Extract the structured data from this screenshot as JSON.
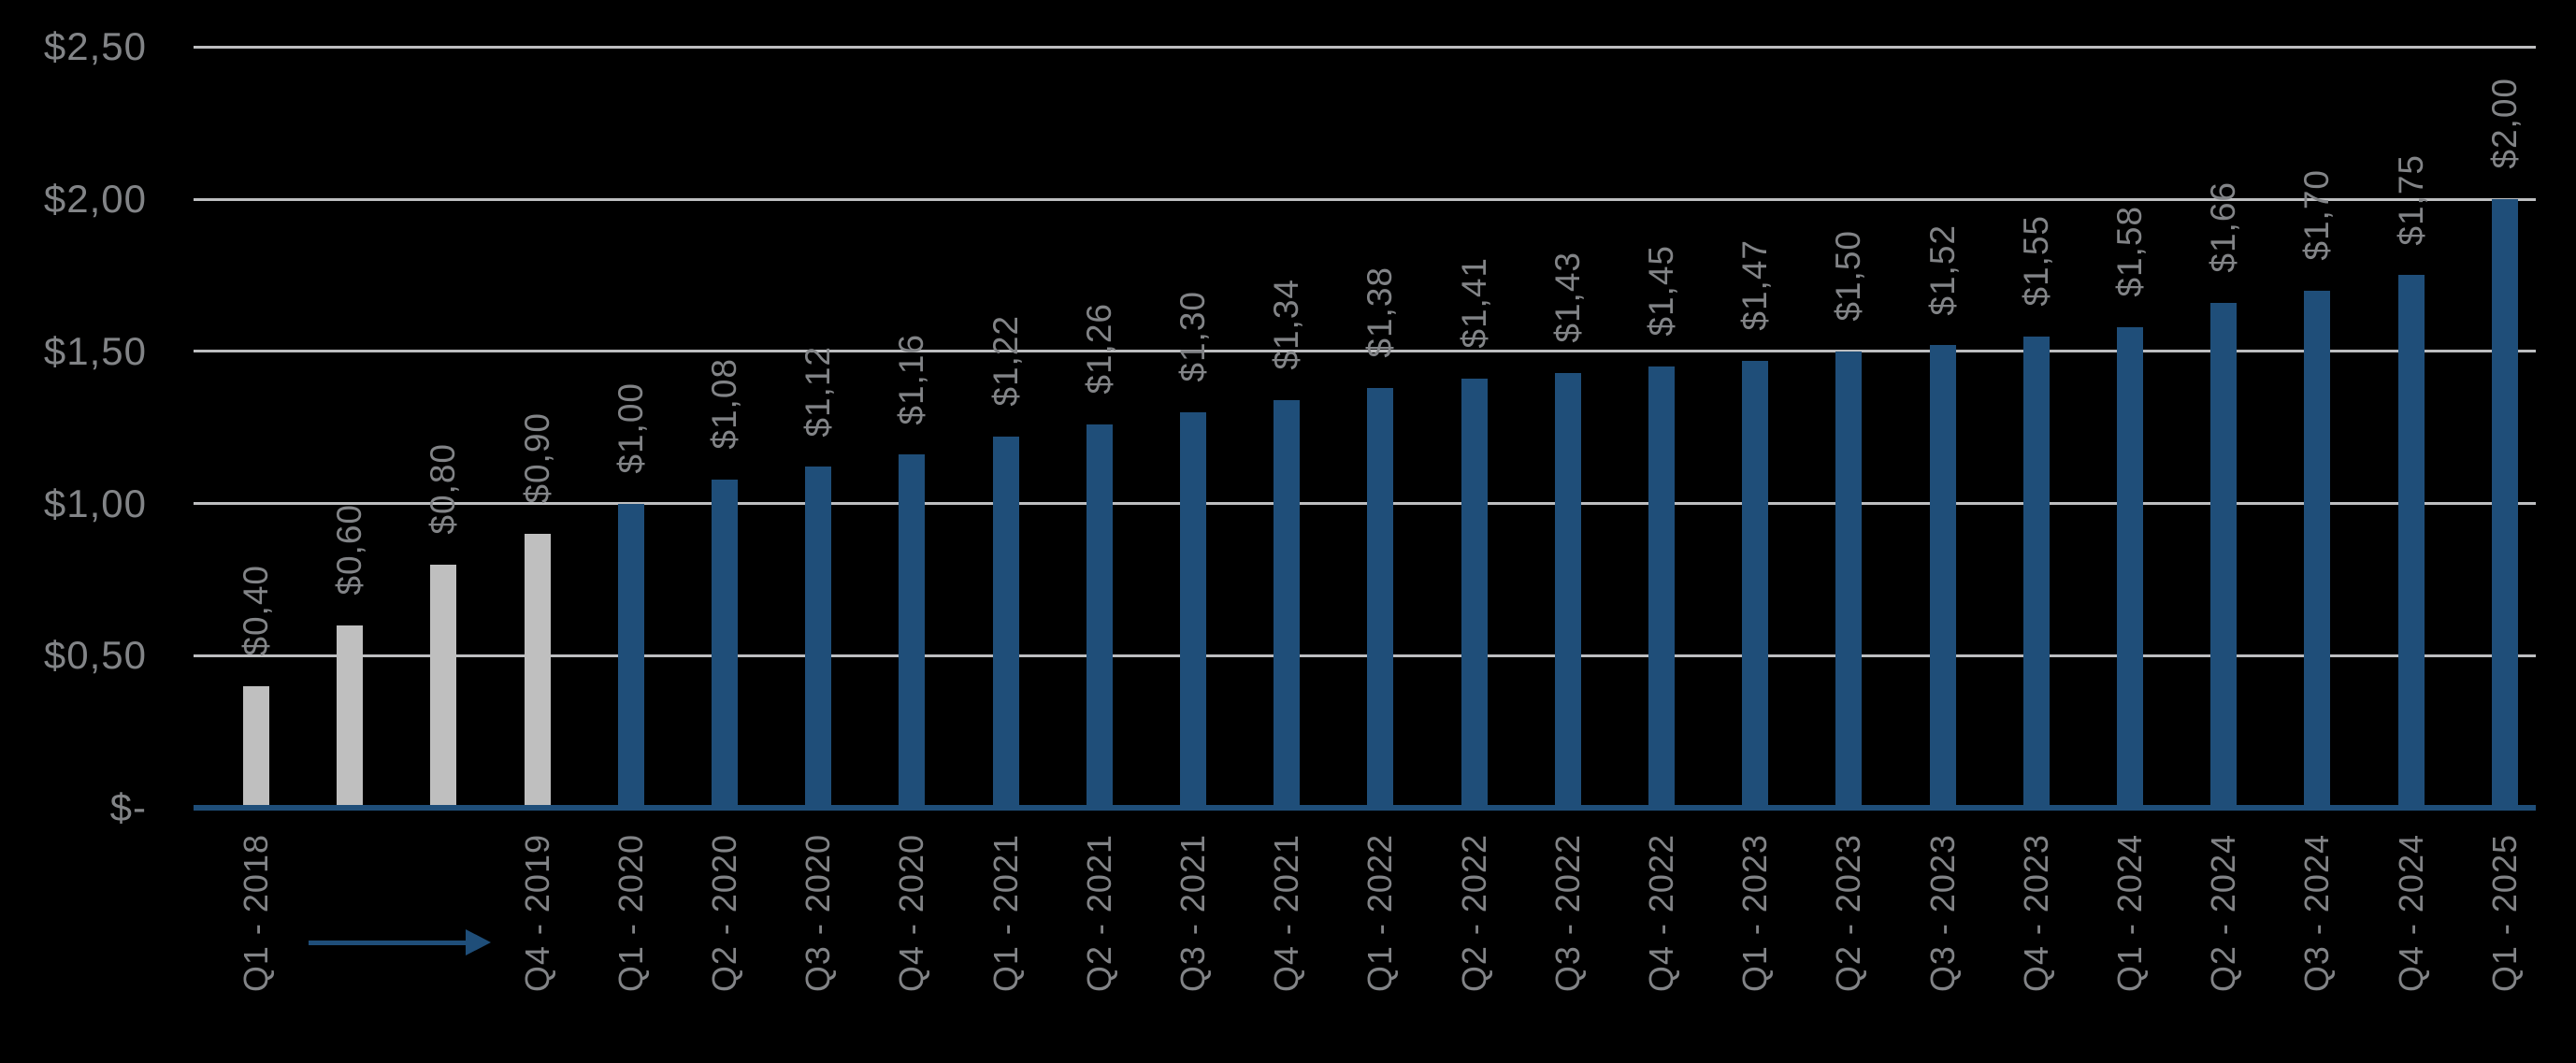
{
  "chart_data": {
    "type": "bar",
    "title": "",
    "ylim": [
      0,
      2.5
    ],
    "number_format": "currency-comma-decimal",
    "y_axis": {
      "gridlines": true,
      "ticks": [
        {
          "value": 2.5,
          "label": "$2,50"
        },
        {
          "value": 2.0,
          "label": "$2,00"
        },
        {
          "value": 1.5,
          "label": "$1,50"
        },
        {
          "value": 1.0,
          "label": "$1,00"
        },
        {
          "value": 0.5,
          "label": "$0,50"
        },
        {
          "value": 0.0,
          "label": "$-"
        }
      ]
    },
    "bars": [
      {
        "category": "Q1 - 2018",
        "value": 0.4,
        "label": "$0,40",
        "color": "secondary"
      },
      {
        "category": "",
        "value": 0.6,
        "label": "$0,60",
        "color": "secondary"
      },
      {
        "category": "",
        "value": 0.8,
        "label": "$0,80",
        "color": "secondary"
      },
      {
        "category": "Q4 - 2019",
        "value": 0.9,
        "label": "$0,90",
        "color": "secondary"
      },
      {
        "category": "Q1 - 2020",
        "value": 1.0,
        "label": "$1,00",
        "color": "primary"
      },
      {
        "category": "Q2 - 2020",
        "value": 1.08,
        "label": "$1,08",
        "color": "primary"
      },
      {
        "category": "Q3 - 2020",
        "value": 1.12,
        "label": "$1,12",
        "color": "primary"
      },
      {
        "category": "Q4 - 2020",
        "value": 1.16,
        "label": "$1,16",
        "color": "primary"
      },
      {
        "category": "Q1 - 2021",
        "value": 1.22,
        "label": "$1,22",
        "color": "primary"
      },
      {
        "category": "Q2 - 2021",
        "value": 1.26,
        "label": "$1,26",
        "color": "primary"
      },
      {
        "category": "Q3 - 2021",
        "value": 1.3,
        "label": "$1,30",
        "color": "primary"
      },
      {
        "category": "Q4 - 2021",
        "value": 1.34,
        "label": "$1,34",
        "color": "primary"
      },
      {
        "category": "Q1 - 2022",
        "value": 1.38,
        "label": "$1,38",
        "color": "primary"
      },
      {
        "category": "Q2 - 2022",
        "value": 1.41,
        "label": "$1,41",
        "color": "primary"
      },
      {
        "category": "Q3 - 2022",
        "value": 1.43,
        "label": "$1,43",
        "color": "primary"
      },
      {
        "category": "Q4 - 2022",
        "value": 1.45,
        "label": "$1,45",
        "color": "primary"
      },
      {
        "category": "Q1 - 2023",
        "value": 1.47,
        "label": "$1,47",
        "color": "primary"
      },
      {
        "category": "Q2 - 2023",
        "value": 1.5,
        "label": "$1,50",
        "color": "primary"
      },
      {
        "category": "Q3 - 2023",
        "value": 1.52,
        "label": "$1,52",
        "color": "primary"
      },
      {
        "category": "Q4 - 2023",
        "value": 1.55,
        "label": "$1,55",
        "color": "primary"
      },
      {
        "category": "Q1 - 2024",
        "value": 1.58,
        "label": "$1,58",
        "color": "primary"
      },
      {
        "category": "Q2 - 2024",
        "value": 1.66,
        "label": "$1,66",
        "color": "primary"
      },
      {
        "category": "Q3 - 2024",
        "value": 1.7,
        "label": "$1,70",
        "color": "primary"
      },
      {
        "category": "Q4 - 2024",
        "value": 1.75,
        "label": "$1,75",
        "color": "primary"
      },
      {
        "category": "Q1 - 2025",
        "value": 2.0,
        "label": "$2,00",
        "color": "primary"
      }
    ],
    "annotations": [
      {
        "type": "arrow",
        "direction": "right",
        "location": "x-axis label row, spanning unlabeled quarters between Q1 - 2018 and Q4 - 2019"
      }
    ],
    "palette": {
      "primary_bar": "#1f4e79",
      "secondary_bar": "#bfbfbf",
      "text": "#828487",
      "gridline": "#bdbec0",
      "axis_line": "#1f4e79",
      "background": "#000000"
    },
    "legend": "none",
    "grid": "horizontal"
  }
}
